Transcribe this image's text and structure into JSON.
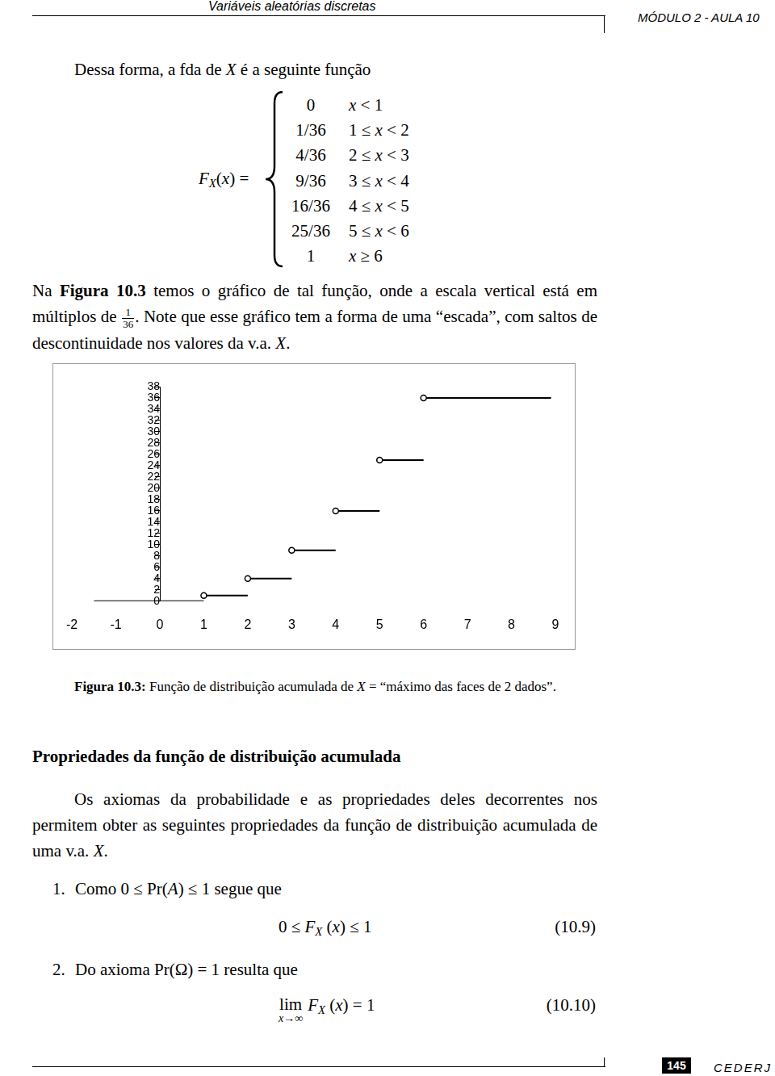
{
  "header": {
    "left": "Variáveis aleatórias discretas",
    "right": "MÓDULO 2 - AULA 10"
  },
  "intro": [
    {
      "text": "Dessa forma, a fda de "
    },
    {
      "text": "X",
      "italic": true
    },
    {
      "text": " é a seguinte função"
    }
  ],
  "function": {
    "lhs": [
      {
        "text": "F",
        "italic": true
      },
      {
        "text": "X",
        "italic": true,
        "sub": true
      },
      {
        "text": "("
      },
      {
        "text": "x",
        "italic": true
      },
      {
        "text": ") ="
      }
    ],
    "cases": [
      {
        "value": "0",
        "condition": [
          {
            "text": "x",
            "italic": true
          },
          {
            "text": " < 1"
          }
        ]
      },
      {
        "value": "1/36",
        "condition": [
          {
            "text": "1 ≤ "
          },
          {
            "text": "x",
            "italic": true
          },
          {
            "text": " < 2"
          }
        ]
      },
      {
        "value": "4/36",
        "condition": [
          {
            "text": "2 ≤ "
          },
          {
            "text": "x",
            "italic": true
          },
          {
            "text": " < 3"
          }
        ]
      },
      {
        "value": "9/36",
        "condition": [
          {
            "text": "3 ≤ "
          },
          {
            "text": "x",
            "italic": true
          },
          {
            "text": " < 4"
          }
        ]
      },
      {
        "value": "16/36",
        "condition": [
          {
            "text": "4 ≤ "
          },
          {
            "text": "x",
            "italic": true
          },
          {
            "text": " < 5"
          }
        ]
      },
      {
        "value": "25/36",
        "condition": [
          {
            "text": "5 ≤ "
          },
          {
            "text": "x",
            "italic": true
          },
          {
            "text": " < 6"
          }
        ]
      },
      {
        "value": "1",
        "condition": [
          {
            "text": "x",
            "italic": true
          },
          {
            "text": " ≥ 6"
          }
        ]
      }
    ]
  },
  "paragraph1": [
    {
      "text": "Na "
    },
    {
      "text": "Figura 10.3",
      "bold": true
    },
    {
      "text": " temos o gráfico de tal função, onde a escala vertical está em múltiplos de "
    },
    {
      "frac": [
        "1",
        "36"
      ]
    },
    {
      "text": ". Note que esse gráfico tem a forma de uma “escada”, com saltos de descontinuidade nos valores da v.a. "
    },
    {
      "text": "X",
      "italic": true
    },
    {
      "text": "."
    }
  ],
  "chart_data": {
    "type": "line",
    "xlim": [
      -2,
      9
    ],
    "xticks": [
      -2,
      -1,
      0,
      1,
      2,
      3,
      4,
      5,
      6,
      7,
      8,
      9
    ],
    "ylim": [
      0,
      38
    ],
    "yticks": [
      0,
      2,
      4,
      6,
      8,
      10,
      12,
      14,
      16,
      18,
      20,
      22,
      24,
      26,
      28,
      30,
      32,
      34,
      36,
      38
    ],
    "grid": false,
    "series": [
      {
        "color": "#000000",
        "marker": "none",
        "x_start": [
          -1.5
        ],
        "x_end": [
          1
        ],
        "values": [
          0
        ]
      },
      {
        "color": "#000000",
        "marker": "circle",
        "x_start": [
          1,
          2,
          3,
          4,
          5,
          6
        ],
        "x_end": [
          2,
          3,
          4,
          5,
          6,
          8.9
        ],
        "values": [
          1,
          4,
          9,
          16,
          25,
          36
        ]
      }
    ]
  },
  "caption": [
    {
      "text": "Figura 10.3:",
      "bold": true
    },
    {
      "text": " Função de distribuição acumulada de "
    },
    {
      "text": "X",
      "italic": true
    },
    {
      "text": " = “máximo das faces de 2 dados”."
    }
  ],
  "heading": "Propriedades da função de distribuição acumulada",
  "paragraph2": [
    {
      "text": "Os axiomas da probabilidade e as propriedades deles decorrentes nos permitem obter as seguintes propriedades da função de distribuição acumulada de uma v.a. "
    },
    {
      "text": "X",
      "italic": true
    },
    {
      "text": "."
    }
  ],
  "items": [
    {
      "number": "1.",
      "text": [
        {
          "text": "Como 0 ≤ Pr("
        },
        {
          "text": "A",
          "italic": true
        },
        {
          "text": ") ≤ 1 segue que"
        }
      ],
      "equation": [
        {
          "text": "0 ≤ "
        },
        {
          "text": "F",
          "italic": true
        },
        {
          "text": "X",
          "italic": true,
          "sub": true
        },
        {
          "text": " ("
        },
        {
          "text": "x",
          "italic": true
        },
        {
          "text": ") ≤ 1"
        }
      ],
      "equation_number": "(10.9)"
    },
    {
      "number": "2.",
      "text": [
        {
          "text": "Do axioma Pr(Ω) = 1 resulta que"
        }
      ],
      "equation": [
        {
          "lim": "lim",
          "under": "x→∞"
        },
        {
          "text": "F",
          "italic": true
        },
        {
          "text": "X",
          "italic": true,
          "sub": true
        },
        {
          "text": " ("
        },
        {
          "text": "x",
          "italic": true
        },
        {
          "text": ") = 1"
        }
      ],
      "equation_number": "(10.10)"
    }
  ],
  "footer": {
    "page": "145",
    "brand": "CEDERJ"
  }
}
